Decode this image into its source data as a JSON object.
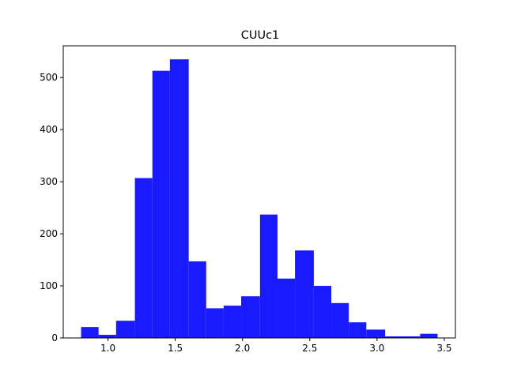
{
  "chart_data": {
    "type": "bar",
    "title": "CUUc1",
    "xlabel": "",
    "ylabel": "",
    "bar_color": "#1a1aff",
    "bins": [
      {
        "x0": 0.8,
        "x1": 0.93,
        "count": 21
      },
      {
        "x0": 0.93,
        "x1": 1.06,
        "count": 6
      },
      {
        "x0": 1.06,
        "x1": 1.2,
        "count": 33
      },
      {
        "x0": 1.2,
        "x1": 1.33,
        "count": 307
      },
      {
        "x0": 1.33,
        "x1": 1.46,
        "count": 513
      },
      {
        "x0": 1.46,
        "x1": 1.6,
        "count": 535
      },
      {
        "x0": 1.6,
        "x1": 1.73,
        "count": 147
      },
      {
        "x0": 1.73,
        "x1": 1.86,
        "count": 57
      },
      {
        "x0": 1.86,
        "x1": 1.99,
        "count": 62
      },
      {
        "x0": 1.99,
        "x1": 2.13,
        "count": 80
      },
      {
        "x0": 2.13,
        "x1": 2.26,
        "count": 237
      },
      {
        "x0": 2.26,
        "x1": 2.39,
        "count": 114
      },
      {
        "x0": 2.39,
        "x1": 2.53,
        "count": 168
      },
      {
        "x0": 2.53,
        "x1": 2.66,
        "count": 100
      },
      {
        "x0": 2.66,
        "x1": 2.79,
        "count": 67
      },
      {
        "x0": 2.79,
        "x1": 2.92,
        "count": 30
      },
      {
        "x0": 2.92,
        "x1": 3.06,
        "count": 16
      },
      {
        "x0": 3.06,
        "x1": 3.19,
        "count": 3
      },
      {
        "x0": 3.19,
        "x1": 3.32,
        "count": 3
      },
      {
        "x0": 3.32,
        "x1": 3.45,
        "count": 8
      }
    ],
    "xlim": [
      0.6675,
      3.5825
    ],
    "ylim": [
      0,
      561
    ],
    "xticks": [
      "1.0",
      "1.5",
      "2.0",
      "2.5",
      "3.0",
      "3.5"
    ],
    "yticks": [
      "0",
      "100",
      "200",
      "300",
      "400",
      "500"
    ],
    "grid": false,
    "legend": "none"
  }
}
